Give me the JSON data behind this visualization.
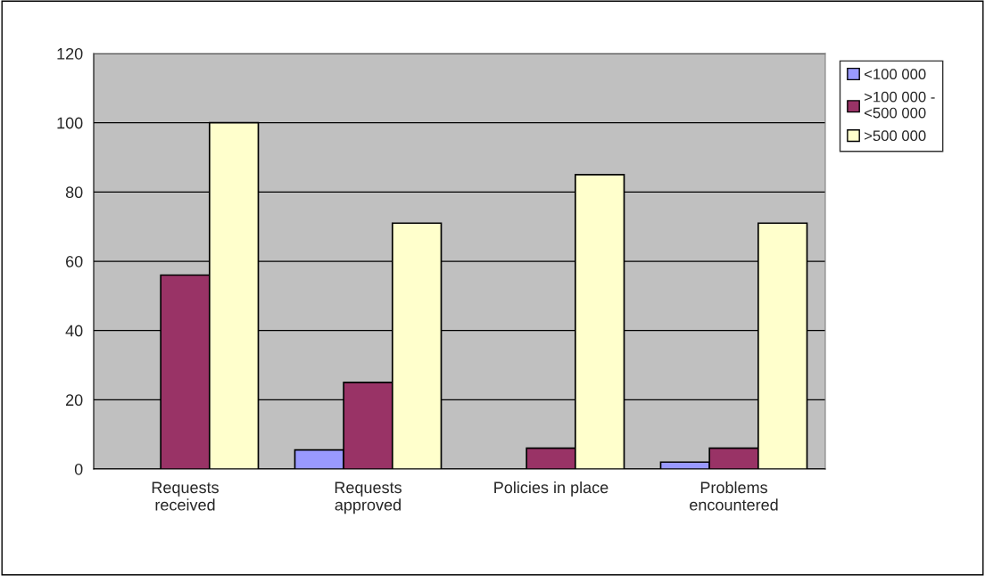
{
  "chart_data": {
    "type": "bar",
    "categories": [
      "Requests received",
      "Requests approved",
      "Policies in place",
      "Problems encountered"
    ],
    "series": [
      {
        "name": "<100 000",
        "color": "#9999ff",
        "values": [
          null,
          5.5,
          null,
          2
        ]
      },
      {
        "name": ">100 000 - <500 000",
        "color": "#993366",
        "values": [
          56,
          25,
          6,
          6
        ]
      },
      {
        "name": ">500 000",
        "color": "#ffffcc",
        "values": [
          100,
          71,
          85,
          71
        ]
      }
    ],
    "ylim": [
      0,
      120
    ],
    "yticks": [
      0,
      20,
      40,
      60,
      80,
      100,
      120
    ],
    "grid": "y",
    "legend": "right"
  }
}
